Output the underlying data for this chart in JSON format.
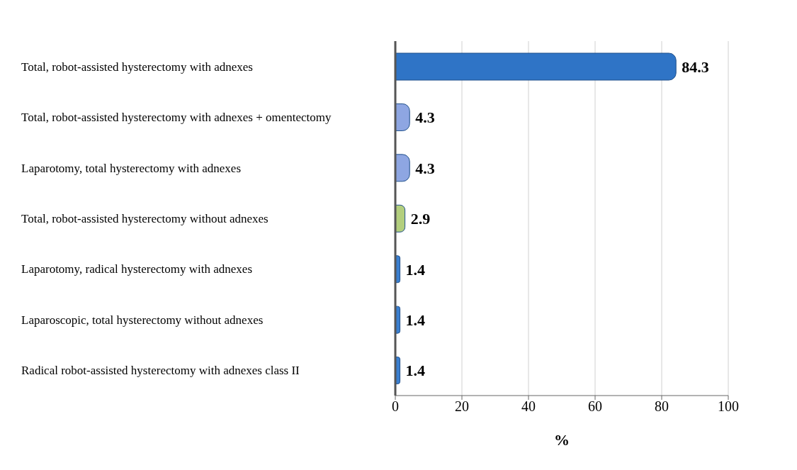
{
  "chart_data": {
    "type": "bar",
    "orientation": "horizontal",
    "categories": [
      "Total, robot-assisted hysterectomy with adnexes",
      "Total, robot-assisted hysterectomy with adnexes + omentectomy",
      "Laparotomy, total hysterectomy with adnexes",
      "Total, robot-assisted hysterectomy without adnexes",
      "Laparotomy, radical hysterectomy with adnexes",
      "Laparoscopic, total hysterectomy without adnexes",
      "Radical robot-assisted hysterectomy with adnexes class II"
    ],
    "values": [
      84.3,
      4.3,
      4.3,
      2.9,
      1.4,
      1.4,
      1.4
    ],
    "colors": [
      "#2f74c6",
      "#8ea6e2",
      "#8ea6e2",
      "#b3cf7e",
      "#3a7fd0",
      "#3a7fd0",
      "#3a7fd0"
    ],
    "xlim": [
      0,
      100
    ],
    "xticks": [
      0,
      20,
      40,
      60,
      80,
      100
    ],
    "xlabel": "%",
    "grid": "x",
    "data_labels": true
  }
}
